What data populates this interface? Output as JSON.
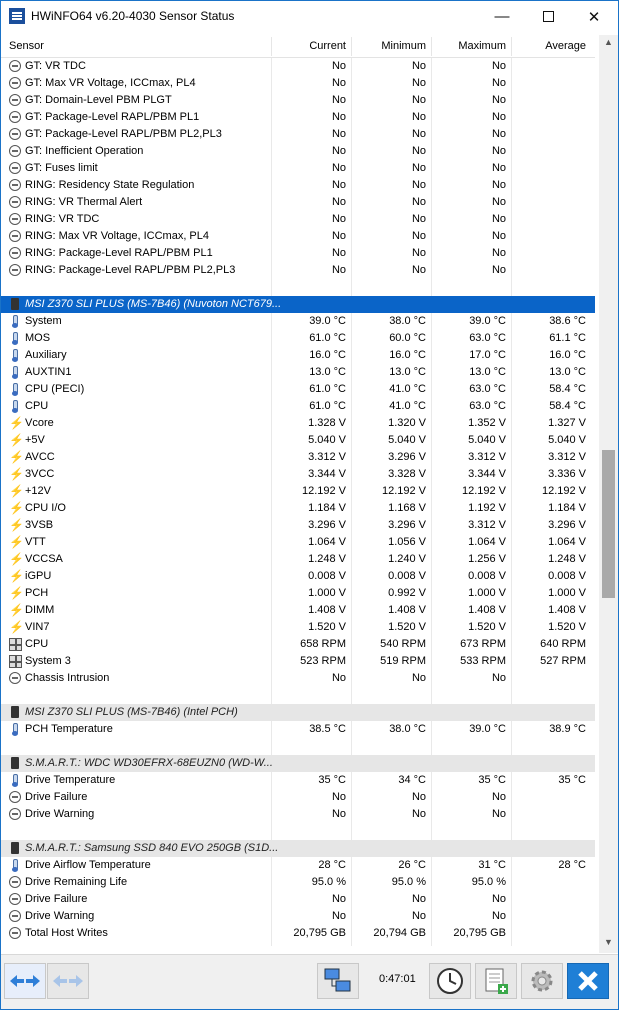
{
  "window": {
    "title": "HWiNFO64 v6.20-4030 Sensor Status"
  },
  "header": {
    "sensor": "Sensor",
    "current": "Current",
    "minimum": "Minimum",
    "maximum": "Maximum",
    "average": "Average"
  },
  "rows": [
    {
      "type": "circle",
      "label": "GT: VR TDC",
      "cur": "No",
      "min": "No",
      "max": "No",
      "avg": ""
    },
    {
      "type": "circle",
      "label": "GT: Max VR Voltage, ICCmax, PL4",
      "cur": "No",
      "min": "No",
      "max": "No",
      "avg": ""
    },
    {
      "type": "circle",
      "label": "GT: Domain-Level PBM PLGT",
      "cur": "No",
      "min": "No",
      "max": "No",
      "avg": ""
    },
    {
      "type": "circle",
      "label": "GT: Package-Level RAPL/PBM PL1",
      "cur": "No",
      "min": "No",
      "max": "No",
      "avg": ""
    },
    {
      "type": "circle",
      "label": "GT: Package-Level RAPL/PBM PL2,PL3",
      "cur": "No",
      "min": "No",
      "max": "No",
      "avg": ""
    },
    {
      "type": "circle",
      "label": "GT: Inefficient Operation",
      "cur": "No",
      "min": "No",
      "max": "No",
      "avg": ""
    },
    {
      "type": "circle",
      "label": "GT: Fuses limit",
      "cur": "No",
      "min": "No",
      "max": "No",
      "avg": ""
    },
    {
      "type": "circle",
      "label": "RING: Residency State Regulation",
      "cur": "No",
      "min": "No",
      "max": "No",
      "avg": ""
    },
    {
      "type": "circle",
      "label": "RING: VR Thermal Alert",
      "cur": "No",
      "min": "No",
      "max": "No",
      "avg": ""
    },
    {
      "type": "circle",
      "label": "RING: VR TDC",
      "cur": "No",
      "min": "No",
      "max": "No",
      "avg": ""
    },
    {
      "type": "circle",
      "label": "RING: Max VR Voltage, ICCmax, PL4",
      "cur": "No",
      "min": "No",
      "max": "No",
      "avg": ""
    },
    {
      "type": "circle",
      "label": "RING: Package-Level RAPL/PBM PL1",
      "cur": "No",
      "min": "No",
      "max": "No",
      "avg": ""
    },
    {
      "type": "circle",
      "label": "RING: Package-Level RAPL/PBM PL2,PL3",
      "cur": "No",
      "min": "No",
      "max": "No",
      "avg": ""
    },
    {
      "type": "blank"
    },
    {
      "type": "group",
      "selected": true,
      "label": "MSI Z370 SLI PLUS (MS-7B46) (Nuvoton NCT679..."
    },
    {
      "type": "therm",
      "label": "System",
      "cur": "39.0 °C",
      "min": "38.0 °C",
      "max": "39.0 °C",
      "avg": "38.6 °C"
    },
    {
      "type": "therm",
      "label": "MOS",
      "cur": "61.0 °C",
      "min": "60.0 °C",
      "max": "63.0 °C",
      "avg": "61.1 °C"
    },
    {
      "type": "therm",
      "label": "Auxiliary",
      "cur": "16.0 °C",
      "min": "16.0 °C",
      "max": "17.0 °C",
      "avg": "16.0 °C"
    },
    {
      "type": "therm",
      "label": "AUXTIN1",
      "cur": "13.0 °C",
      "min": "13.0 °C",
      "max": "13.0 °C",
      "avg": "13.0 °C"
    },
    {
      "type": "therm",
      "label": "CPU (PECI)",
      "cur": "61.0 °C",
      "min": "41.0 °C",
      "max": "63.0 °C",
      "avg": "58.4 °C"
    },
    {
      "type": "therm",
      "label": "CPU",
      "cur": "61.0 °C",
      "min": "41.0 °C",
      "max": "63.0 °C",
      "avg": "58.4 °C"
    },
    {
      "type": "bolt",
      "label": "Vcore",
      "cur": "1.328 V",
      "min": "1.320 V",
      "max": "1.352 V",
      "avg": "1.327 V"
    },
    {
      "type": "bolt",
      "label": "+5V",
      "cur": "5.040 V",
      "min": "5.040 V",
      "max": "5.040 V",
      "avg": "5.040 V"
    },
    {
      "type": "bolt",
      "label": "AVCC",
      "cur": "3.312 V",
      "min": "3.296 V",
      "max": "3.312 V",
      "avg": "3.312 V"
    },
    {
      "type": "bolt",
      "label": "3VCC",
      "cur": "3.344 V",
      "min": "3.328 V",
      "max": "3.344 V",
      "avg": "3.336 V"
    },
    {
      "type": "bolt",
      "label": "+12V",
      "cur": "12.192 V",
      "min": "12.192 V",
      "max": "12.192 V",
      "avg": "12.192 V"
    },
    {
      "type": "bolt",
      "label": "CPU I/O",
      "cur": "1.184 V",
      "min": "1.168 V",
      "max": "1.192 V",
      "avg": "1.184 V"
    },
    {
      "type": "bolt",
      "label": "3VSB",
      "cur": "3.296 V",
      "min": "3.296 V",
      "max": "3.312 V",
      "avg": "3.296 V"
    },
    {
      "type": "bolt",
      "label": "VTT",
      "cur": "1.064 V",
      "min": "1.056 V",
      "max": "1.064 V",
      "avg": "1.064 V"
    },
    {
      "type": "bolt",
      "label": "VCCSA",
      "cur": "1.248 V",
      "min": "1.240 V",
      "max": "1.256 V",
      "avg": "1.248 V"
    },
    {
      "type": "bolt",
      "label": "iGPU",
      "cur": "0.008 V",
      "min": "0.008 V",
      "max": "0.008 V",
      "avg": "0.008 V"
    },
    {
      "type": "bolt",
      "label": "PCH",
      "cur": "1.000 V",
      "min": "0.992 V",
      "max": "1.000 V",
      "avg": "1.000 V"
    },
    {
      "type": "bolt",
      "label": "DIMM",
      "cur": "1.408 V",
      "min": "1.408 V",
      "max": "1.408 V",
      "avg": "1.408 V"
    },
    {
      "type": "bolt",
      "label": "VIN7",
      "cur": "1.520 V",
      "min": "1.520 V",
      "max": "1.520 V",
      "avg": "1.520 V"
    },
    {
      "type": "fan",
      "label": "CPU",
      "cur": "658 RPM",
      "min": "540 RPM",
      "max": "673 RPM",
      "avg": "640 RPM"
    },
    {
      "type": "fan",
      "label": "System 3",
      "cur": "523 RPM",
      "min": "519 RPM",
      "max": "533 RPM",
      "avg": "527 RPM"
    },
    {
      "type": "circle",
      "label": "Chassis Intrusion",
      "cur": "No",
      "min": "No",
      "max": "No",
      "avg": ""
    },
    {
      "type": "blank"
    },
    {
      "type": "group",
      "selected": false,
      "label": "MSI Z370 SLI PLUS (MS-7B46) (Intel PCH)"
    },
    {
      "type": "therm",
      "label": "PCH Temperature",
      "cur": "38.5 °C",
      "min": "38.0 °C",
      "max": "39.0 °C",
      "avg": "38.9 °C"
    },
    {
      "type": "blank"
    },
    {
      "type": "group",
      "selected": false,
      "label": "S.M.A.R.T.: WDC WD30EFRX-68EUZN0 (WD-W..."
    },
    {
      "type": "therm",
      "label": "Drive Temperature",
      "cur": "35 °C",
      "min": "34 °C",
      "max": "35 °C",
      "avg": "35 °C"
    },
    {
      "type": "circle",
      "label": "Drive Failure",
      "cur": "No",
      "min": "No",
      "max": "No",
      "avg": ""
    },
    {
      "type": "circle",
      "label": "Drive Warning",
      "cur": "No",
      "min": "No",
      "max": "No",
      "avg": ""
    },
    {
      "type": "blank"
    },
    {
      "type": "group",
      "selected": false,
      "label": "S.M.A.R.T.: Samsung SSD 840 EVO 250GB (S1D..."
    },
    {
      "type": "therm",
      "label": "Drive Airflow Temperature",
      "cur": "28 °C",
      "min": "26 °C",
      "max": "31 °C",
      "avg": "28 °C"
    },
    {
      "type": "circle",
      "label": "Drive Remaining Life",
      "cur": "95.0 %",
      "min": "95.0 %",
      "max": "95.0 %",
      "avg": ""
    },
    {
      "type": "circle",
      "label": "Drive Failure",
      "cur": "No",
      "min": "No",
      "max": "No",
      "avg": ""
    },
    {
      "type": "circle",
      "label": "Drive Warning",
      "cur": "No",
      "min": "No",
      "max": "No",
      "avg": ""
    },
    {
      "type": "circle",
      "label": "Total Host Writes",
      "cur": "20,795 GB",
      "min": "20,794 GB",
      "max": "20,795 GB",
      "avg": ""
    }
  ],
  "toolbar": {
    "elapsed": "0:47:01"
  },
  "icons": {
    "minimize": "minimize-icon",
    "maximize": "maximize-icon",
    "close": "close-icon"
  },
  "colors": {
    "selection": "#0a64c8",
    "group_bg": "#e6e6e6",
    "close_button": "#1f7fd6"
  }
}
